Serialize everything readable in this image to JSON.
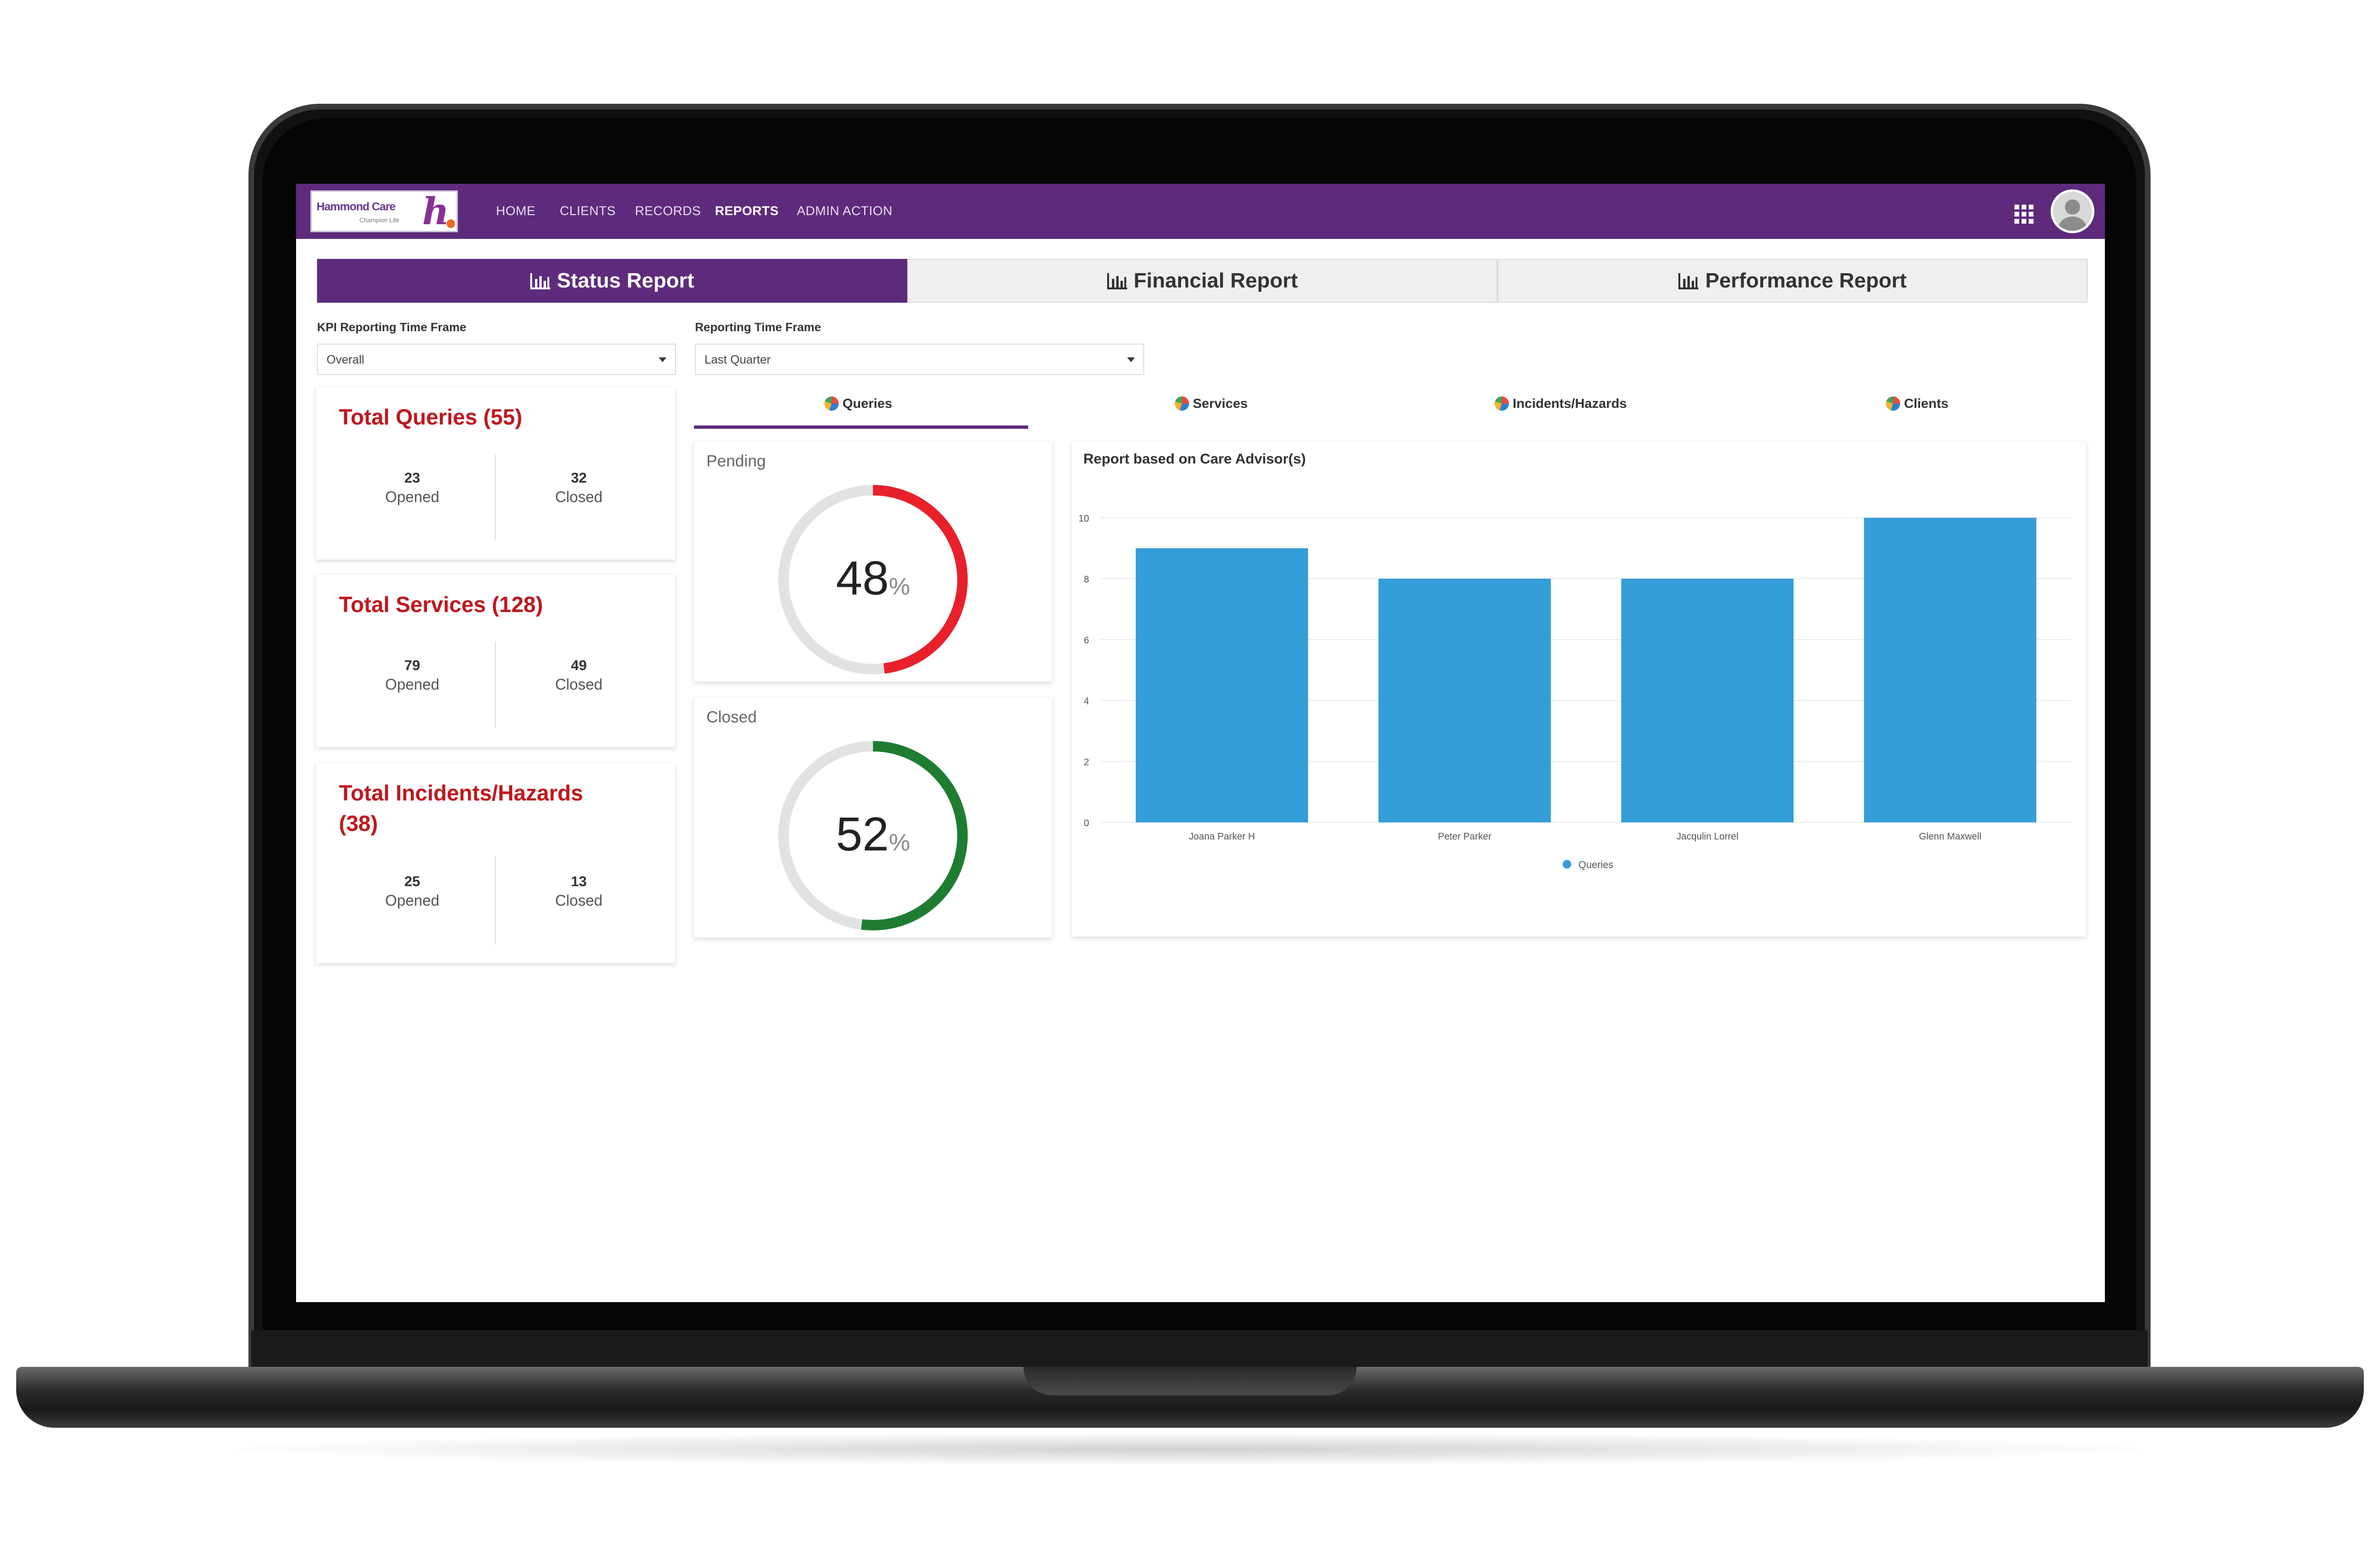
{
  "app": {
    "logo_text": "Hammond Care",
    "logo_sub": "Champion Life"
  },
  "nav": {
    "items": [
      "HOME",
      "CLIENTS",
      "RECORDS",
      "REPORTS",
      "ADMIN ACTION"
    ],
    "active": "REPORTS"
  },
  "report_tabs": [
    {
      "label": "Status Report",
      "active": true
    },
    {
      "label": "Financial Report",
      "active": false
    },
    {
      "label": "Performance Report",
      "active": false
    }
  ],
  "filters": {
    "kpi_label": "KPI Reporting Time Frame",
    "kpi_value": "Overall",
    "rtf_label": "Reporting Time Frame",
    "rtf_value": "Last Quarter"
  },
  "kpi_cards": [
    {
      "title": "Total Queries (55)",
      "opened": "23",
      "opened_label": "Opened",
      "closed": "32",
      "closed_label": "Closed"
    },
    {
      "title": "Total Services (128)",
      "opened": "79",
      "opened_label": "Opened",
      "closed": "49",
      "closed_label": "Closed"
    },
    {
      "title_line1": "Total Incidents/Hazards",
      "title_line2": "(38)",
      "opened": "25",
      "opened_label": "Opened",
      "closed": "13",
      "closed_label": "Closed"
    }
  ],
  "sub_tabs": [
    {
      "label": "Queries",
      "active": true
    },
    {
      "label": "Services",
      "active": false
    },
    {
      "label": "Incidents/Hazards",
      "active": false
    },
    {
      "label": "Clients",
      "active": false
    }
  ],
  "donuts": {
    "pending": {
      "label": "Pending",
      "value": "48",
      "unit": "%",
      "fraction": 0.48,
      "color": "#e8202a"
    },
    "closed": {
      "label": "Closed",
      "value": "52",
      "unit": "%",
      "fraction": 0.52,
      "color": "#1e7d31"
    }
  },
  "colors": {
    "brand_purple": "#5e2b7c",
    "kpi_red": "#c0171e",
    "bar_blue": "#349ed8"
  },
  "chart_data": {
    "type": "bar",
    "title": "Report based on Care Advisor(s)",
    "categories": [
      "Joana Parker H",
      "Peter Parker",
      "Jacqulin Lorrel",
      "Glenn Maxwell"
    ],
    "series": [
      {
        "name": "Queries",
        "values": [
          9,
          8,
          8,
          10
        ]
      }
    ],
    "ylim": [
      0,
      10
    ],
    "yticks": [
      "0",
      "2",
      "4",
      "6",
      "8",
      "10"
    ],
    "grid": true,
    "legend_position": "bottom"
  }
}
